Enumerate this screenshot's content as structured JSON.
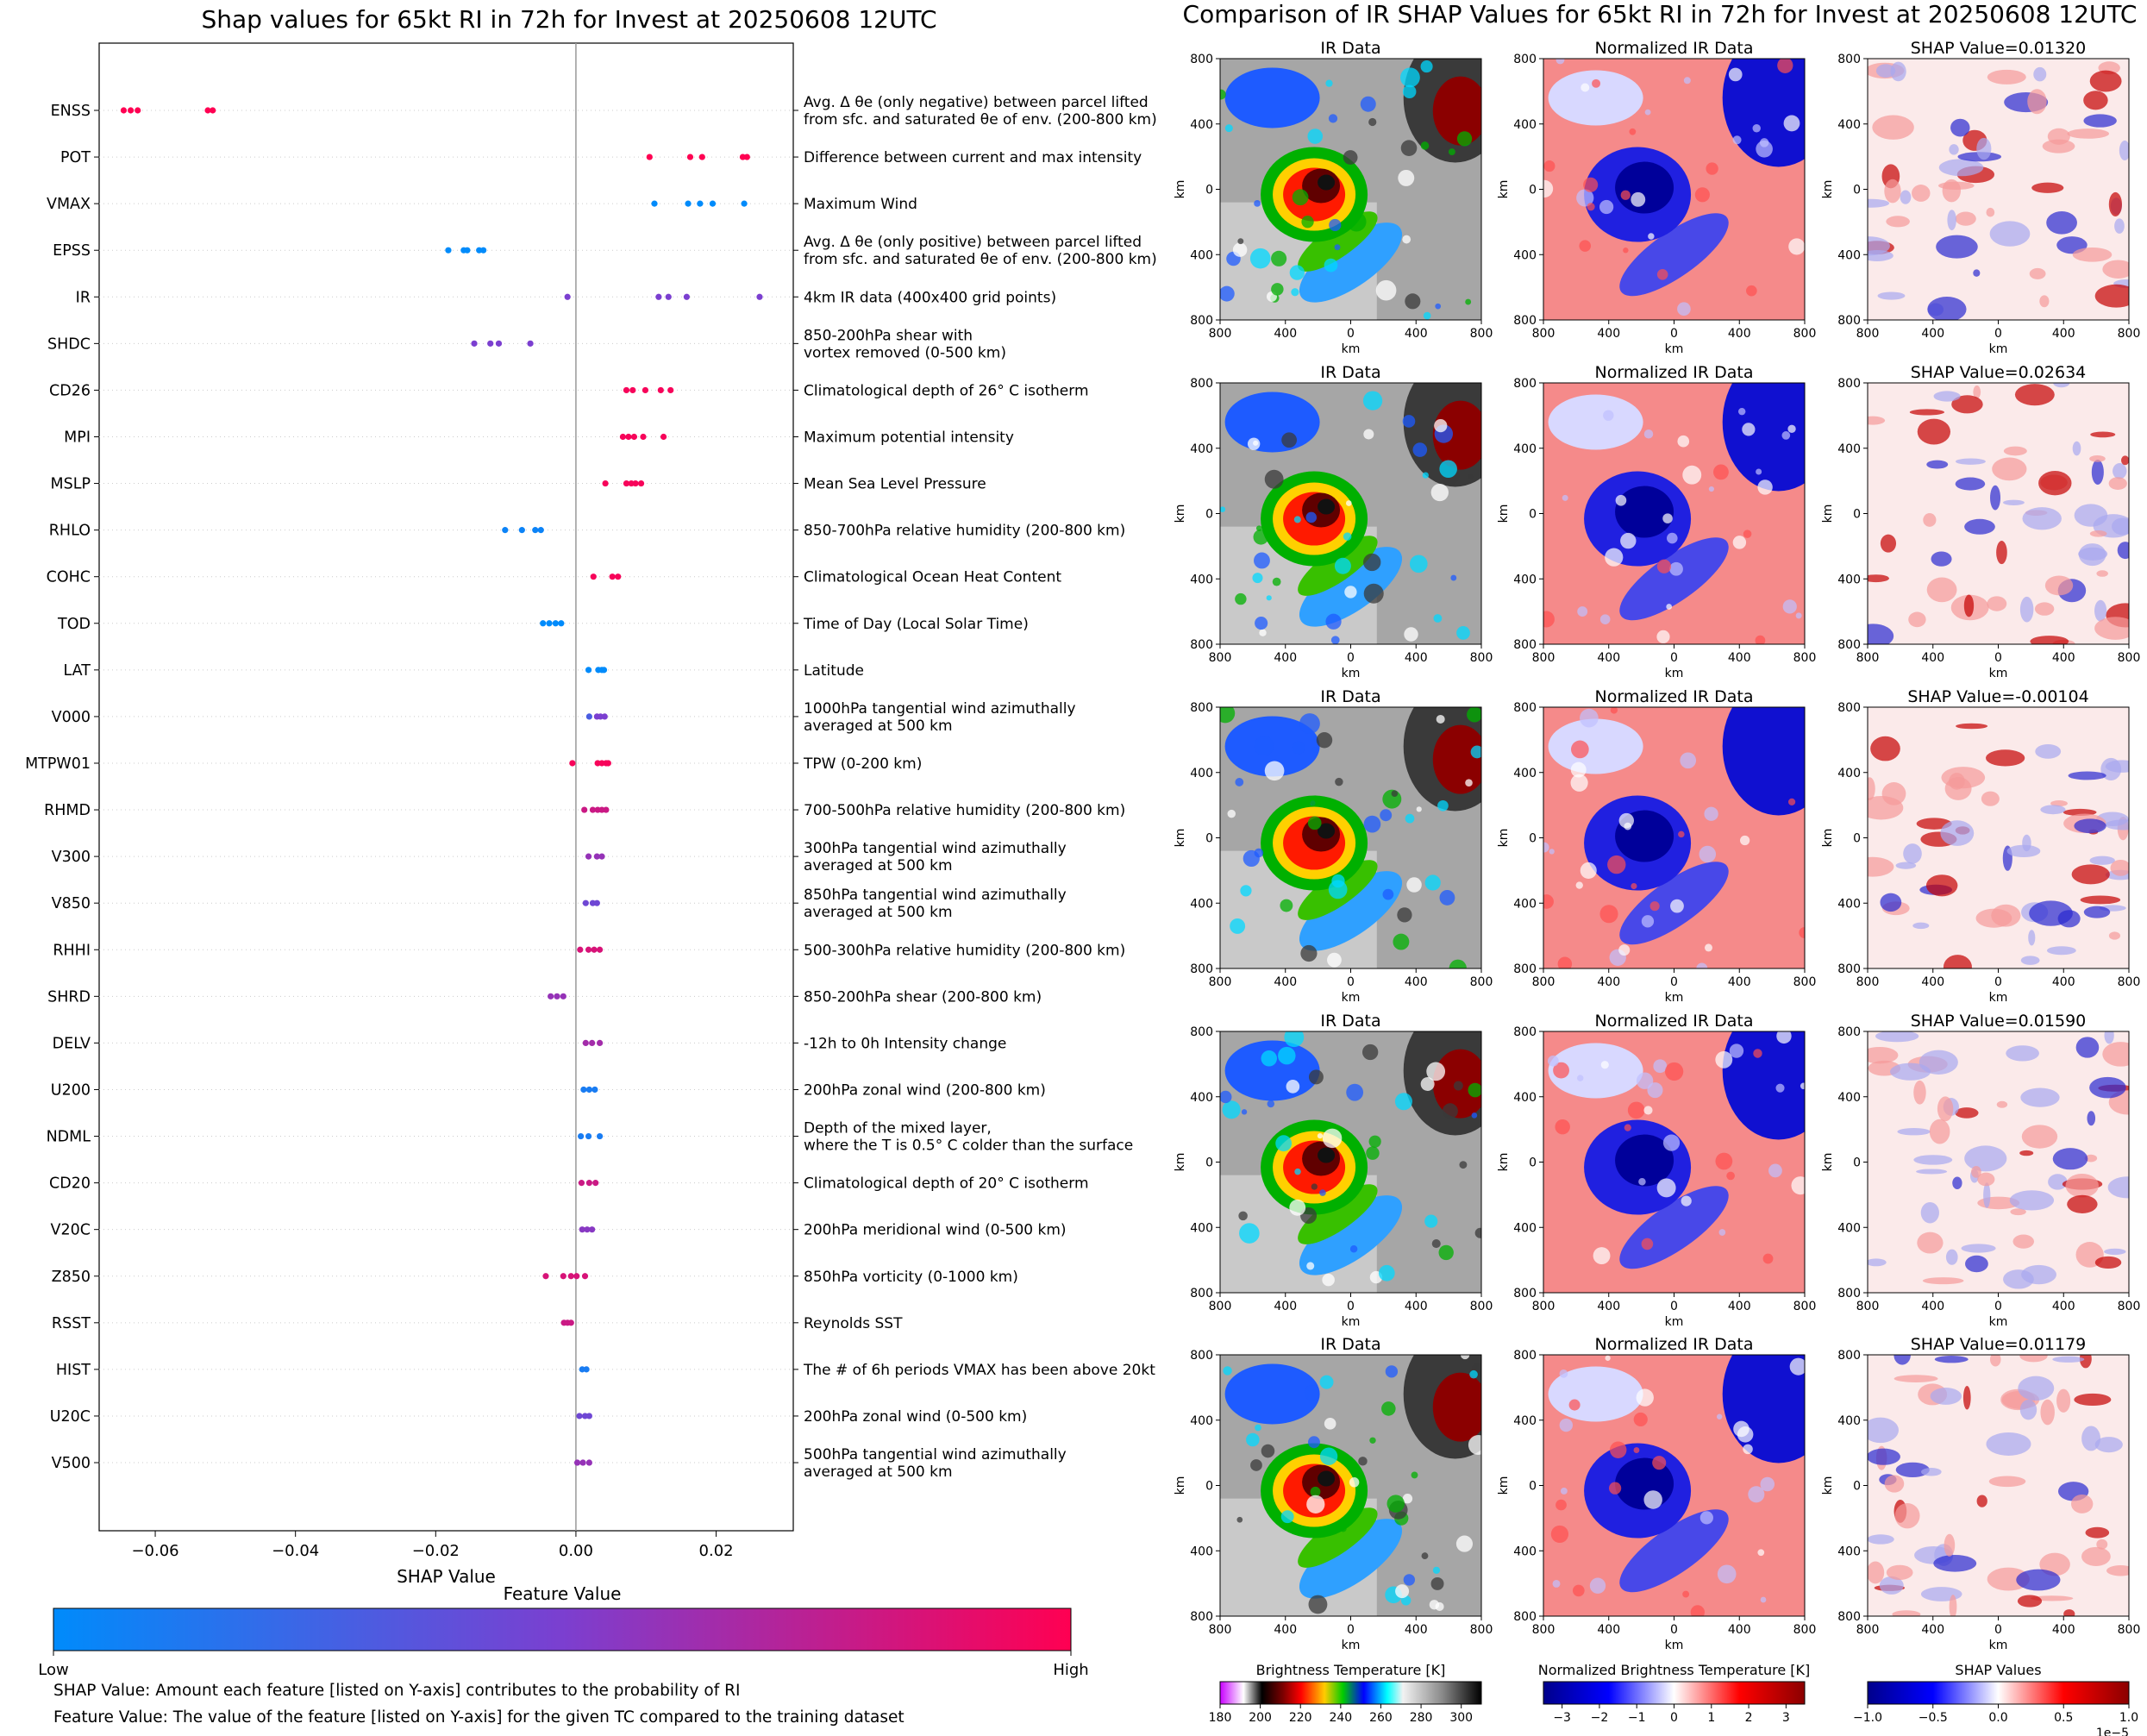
{
  "left": {
    "title": "Shap values for 65kt RI in 72h for Invest at 20250608 12UTC",
    "xlabel": "SHAP Value",
    "colorbar": {
      "title": "Feature Value",
      "low_label": "Low",
      "high_label": "High"
    },
    "notes": [
      "SHAP Value: Amount each feature [listed on Y-axis] contributes to the probability of RI",
      "Feature Value: The value of the feature [listed on Y-axis] for the given TC compared to the training dataset"
    ]
  },
  "chart_data": [
    {
      "type": "scatter",
      "title": "Shap values for 65kt RI in 72h for Invest at 20250608 12UTC",
      "xlabel": "SHAP Value",
      "xlim": [
        -0.068,
        0.031
      ],
      "xticks": [
        -0.06,
        -0.04,
        -0.02,
        0.0,
        0.02
      ],
      "xtick_labels": [
        "−0.06",
        "−0.04",
        "−0.02",
        "0.00",
        "0.02"
      ],
      "grid": "horizontal dotted per feature",
      "colors": {
        "low": "#008bfb",
        "mid": "#7b3fd0",
        "high": "#ff0052"
      },
      "features": [
        {
          "name": "ENSS",
          "desc": [
            "Avg. Δ θe (only negative) between parcel lifted",
            "from sfc. and saturated θe of env. (200-800 km)"
          ],
          "points": [
            [
              -0.0645,
              1
            ],
            [
              -0.0635,
              1
            ],
            [
              -0.0625,
              1
            ],
            [
              -0.0525,
              1
            ],
            [
              -0.0518,
              1
            ]
          ]
        },
        {
          "name": "POT",
          "desc": [
            "Difference between current and max intensity"
          ],
          "points": [
            [
              0.0105,
              1
            ],
            [
              0.0163,
              1
            ],
            [
              0.018,
              1
            ],
            [
              0.0238,
              1
            ],
            [
              0.0244,
              1
            ]
          ]
        },
        {
          "name": "VMAX",
          "desc": [
            "Maximum Wind"
          ],
          "points": [
            [
              0.0112,
              0
            ],
            [
              0.016,
              0
            ],
            [
              0.0177,
              0
            ],
            [
              0.0195,
              0
            ],
            [
              0.024,
              0
            ]
          ]
        },
        {
          "name": "EPSS",
          "desc": [
            "Avg. Δ θe (only positive) between parcel lifted",
            "from sfc. and saturated θe of env. (200-800 km)"
          ],
          "points": [
            [
              -0.0182,
              0
            ],
            [
              -0.016,
              0
            ],
            [
              -0.0155,
              0
            ],
            [
              -0.0138,
              0
            ],
            [
              -0.0132,
              0
            ]
          ]
        },
        {
          "name": "IR",
          "desc": [
            "4km IR data (400x400 grid points)"
          ],
          "points": [
            [
              -0.0012,
              0.5
            ],
            [
              0.0118,
              0.5
            ],
            [
              0.0132,
              0.5
            ],
            [
              0.0158,
              0.5
            ],
            [
              0.0262,
              0.5
            ]
          ]
        },
        {
          "name": "SHDC",
          "desc": [
            "850-200hPa shear with",
            "vortex removed (0-500 km)"
          ],
          "points": [
            [
              -0.0145,
              0.5
            ],
            [
              -0.0122,
              0.5
            ],
            [
              -0.011,
              0.5
            ],
            [
              -0.0065,
              0.5
            ]
          ]
        },
        {
          "name": "CD26",
          "desc": [
            "Climatological depth of 26° C isotherm"
          ],
          "points": [
            [
              0.0072,
              0.97
            ],
            [
              0.0081,
              0.97
            ],
            [
              0.0099,
              0.97
            ],
            [
              0.0121,
              0.97
            ],
            [
              0.0135,
              0.97
            ]
          ]
        },
        {
          "name": "MPI",
          "desc": [
            "Maximum potential intensity"
          ],
          "points": [
            [
              0.0067,
              0.97
            ],
            [
              0.0075,
              0.97
            ],
            [
              0.0083,
              0.97
            ],
            [
              0.0096,
              0.97
            ],
            [
              0.0125,
              0.97
            ]
          ]
        },
        {
          "name": "MSLP",
          "desc": [
            "Mean Sea Level Pressure"
          ],
          "points": [
            [
              0.0042,
              0.97
            ],
            [
              0.0072,
              0.97
            ],
            [
              0.0079,
              0.97
            ],
            [
              0.0085,
              0.97
            ],
            [
              0.0093,
              0.97
            ]
          ]
        },
        {
          "name": "RHLO",
          "desc": [
            "850-700hPa relative humidity (200-800 km)"
          ],
          "points": [
            [
              -0.0101,
              0.05
            ],
            [
              -0.0077,
              0.05
            ],
            [
              -0.0058,
              0.05
            ],
            [
              -0.005,
              0.05
            ]
          ]
        },
        {
          "name": "COHC",
          "desc": [
            "Climatological Ocean Heat Content"
          ],
          "points": [
            [
              0.0025,
              0.97
            ],
            [
              0.0052,
              0.97
            ],
            [
              0.006,
              0.97
            ]
          ]
        },
        {
          "name": "TOD",
          "desc": [
            "Time of Day (Local Solar Time)"
          ],
          "points": [
            [
              -0.0047,
              0
            ],
            [
              -0.0038,
              0
            ],
            [
              -0.0029,
              0
            ],
            [
              -0.0021,
              0
            ]
          ]
        },
        {
          "name": "LAT",
          "desc": [
            "Latitude"
          ],
          "points": [
            [
              0.0018,
              0
            ],
            [
              0.0032,
              0
            ],
            [
              0.0037,
              0
            ],
            [
              0.004,
              0
            ]
          ]
        },
        {
          "name": "V000",
          "desc": [
            "1000hPa tangential wind azimuthally",
            "averaged at 500 km"
          ],
          "points": [
            [
              0.0019,
              0.3
            ],
            [
              0.003,
              0.5
            ],
            [
              0.0035,
              0.5
            ],
            [
              0.0041,
              0.5
            ]
          ]
        },
        {
          "name": "MTPW01",
          "desc": [
            "TPW (0-200 km)"
          ],
          "points": [
            [
              -0.0005,
              0.97
            ],
            [
              0.0031,
              0.97
            ],
            [
              0.0037,
              0.97
            ],
            [
              0.0043,
              0.97
            ],
            [
              0.0046,
              0.97
            ]
          ]
        },
        {
          "name": "RHMD",
          "desc": [
            "700-500hPa relative humidity (200-800 km)"
          ],
          "points": [
            [
              0.0012,
              0.8
            ],
            [
              0.0024,
              0.8
            ],
            [
              0.0031,
              0.8
            ],
            [
              0.0037,
              0.8
            ],
            [
              0.0043,
              0.8
            ]
          ]
        },
        {
          "name": "V300",
          "desc": [
            "300hPa tangential wind azimuthally",
            "averaged at 500 km"
          ],
          "points": [
            [
              0.0018,
              0.6
            ],
            [
              0.003,
              0.6
            ],
            [
              0.0037,
              0.6
            ]
          ]
        },
        {
          "name": "V850",
          "desc": [
            "850hPa tangential wind azimuthally",
            "averaged at 500 km"
          ],
          "points": [
            [
              0.0014,
              0.45
            ],
            [
              0.0024,
              0.45
            ],
            [
              0.003,
              0.45
            ]
          ]
        },
        {
          "name": "RHHI",
          "desc": [
            "500-300hPa relative humidity (200-800 km)"
          ],
          "points": [
            [
              0.0006,
              0.85
            ],
            [
              0.0018,
              0.85
            ],
            [
              0.0026,
              0.85
            ],
            [
              0.0034,
              0.85
            ]
          ]
        },
        {
          "name": "SHRD",
          "desc": [
            "850-200hPa shear (200-800 km)"
          ],
          "points": [
            [
              -0.0036,
              0.6
            ],
            [
              -0.0027,
              0.6
            ],
            [
              -0.0018,
              0.6
            ]
          ]
        },
        {
          "name": "DELV",
          "desc": [
            "-12h to 0h Intensity change"
          ],
          "points": [
            [
              0.0014,
              0.65
            ],
            [
              0.0023,
              0.65
            ],
            [
              0.0034,
              0.65
            ]
          ]
        },
        {
          "name": "U200",
          "desc": [
            "200hPa zonal wind (200-800 km)"
          ],
          "points": [
            [
              0.0011,
              0.1
            ],
            [
              0.0019,
              0.1
            ],
            [
              0.0027,
              0.1
            ]
          ]
        },
        {
          "name": "NDML",
          "desc": [
            "Depth of the mixed layer,",
            "where the T is 0.5° C colder than the surface"
          ],
          "points": [
            [
              0.0007,
              0.1
            ],
            [
              0.0018,
              0.1
            ],
            [
              0.0034,
              0.1
            ]
          ]
        },
        {
          "name": "CD20",
          "desc": [
            "Climatological depth of 20° C isotherm"
          ],
          "points": [
            [
              0.0008,
              0.8
            ],
            [
              0.0019,
              0.8
            ],
            [
              0.0028,
              0.8
            ]
          ]
        },
        {
          "name": "V20C",
          "desc": [
            "200hPa meridional wind (0-500 km)"
          ],
          "points": [
            [
              0.0009,
              0.55
            ],
            [
              0.0016,
              0.55
            ],
            [
              0.0023,
              0.55
            ]
          ]
        },
        {
          "name": "Z850",
          "desc": [
            "850hPa vorticity (0-1000 km)"
          ],
          "points": [
            [
              -0.0043,
              0.85
            ],
            [
              -0.0018,
              0.85
            ],
            [
              -0.0007,
              0.85
            ],
            [
              0.0001,
              0.85
            ],
            [
              0.0013,
              0.85
            ]
          ]
        },
        {
          "name": "RSST",
          "desc": [
            "Reynolds SST"
          ],
          "points": [
            [
              -0.0017,
              0.8
            ],
            [
              -0.0012,
              0.8
            ],
            [
              -0.0007,
              0.8
            ]
          ]
        },
        {
          "name": "HIST",
          "desc": [
            "The # of 6h periods VMAX has been above 20kt"
          ],
          "points": [
            [
              0.0009,
              0.1
            ],
            [
              0.0015,
              0.1
            ]
          ]
        },
        {
          "name": "U20C",
          "desc": [
            "200hPa zonal wind (0-500 km)"
          ],
          "points": [
            [
              0.0005,
              0.45
            ],
            [
              0.0013,
              0.45
            ],
            [
              0.0019,
              0.45
            ]
          ]
        },
        {
          "name": "V500",
          "desc": [
            "500hPa tangential wind azimuthally",
            "averaged at 500 km"
          ],
          "points": [
            [
              0.0002,
              0.6
            ],
            [
              0.001,
              0.6
            ],
            [
              0.0019,
              0.6
            ]
          ]
        }
      ]
    },
    {
      "type": "heatmap",
      "title": "Comparison of IR SHAP Values for 65kt RI in 72h for Invest at 20250608 12UTC",
      "columns": [
        "IR Data",
        "Normalized IR Data"
      ],
      "shap_values": [
        "SHAP Value=0.01320",
        "SHAP Value=0.02634",
        "SHAP Value=-0.00104",
        "SHAP Value=0.01590",
        "SHAP Value=0.01179"
      ],
      "xlabel": "km",
      "ylabel": "km",
      "axis_tick_labels": [
        "800",
        "400",
        "0",
        "400",
        "800"
      ],
      "colorbars": [
        {
          "label": "Brightness Temperature [K]",
          "ticks": [
            "180",
            "200",
            "220",
            "240",
            "260",
            "280",
            "300"
          ],
          "range": [
            180,
            310
          ]
        },
        {
          "label": "Normalized Brightness Temperature [K]",
          "ticks": [
            "−3",
            "−2",
            "−1",
            "0",
            "1",
            "2",
            "3"
          ],
          "range": [
            -3.5,
            3.5
          ]
        },
        {
          "label": "SHAP Values",
          "ticks": [
            "−1.0",
            "−0.5",
            "0.0",
            "0.5",
            "1.0"
          ],
          "range": [
            -1.0,
            1.0
          ],
          "offset": "1e−5"
        }
      ]
    }
  ]
}
